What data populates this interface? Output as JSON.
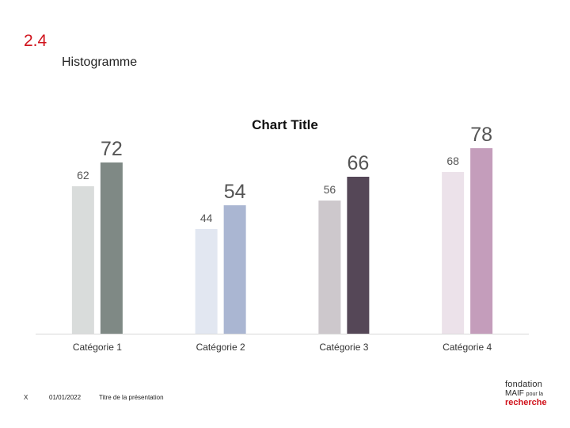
{
  "header": {
    "section_number": "2.4",
    "slide_title": "Histogramme"
  },
  "footer": {
    "slide_marker": "X",
    "date": "01/01/2022",
    "presentation_title": "Titre de la présentation"
  },
  "logo": {
    "line1": "fondation",
    "line2a": "MAIF",
    "line2b": "pour la",
    "line3": "recherche"
  },
  "colors": {
    "accent_red": "#d0121b"
  },
  "chart_data": {
    "type": "bar",
    "title": "Chart Title",
    "xlabel": "",
    "ylabel": "",
    "ylim": [
      0,
      80
    ],
    "grid": false,
    "categories": [
      "Catégorie 1",
      "Catégorie 2",
      "Catégorie 3",
      "Catégorie 4"
    ],
    "series": [
      {
        "values": [
          62,
          44,
          56,
          68
        ],
        "colors": [
          "#d9dcdb",
          "#e2e7f1",
          "#cdc8cc",
          "#ece2ea"
        ]
      },
      {
        "values": [
          72,
          54,
          66,
          78
        ],
        "colors": [
          "#7f8985",
          "#aab6d2",
          "#554757",
          "#c49dbb"
        ]
      }
    ]
  }
}
